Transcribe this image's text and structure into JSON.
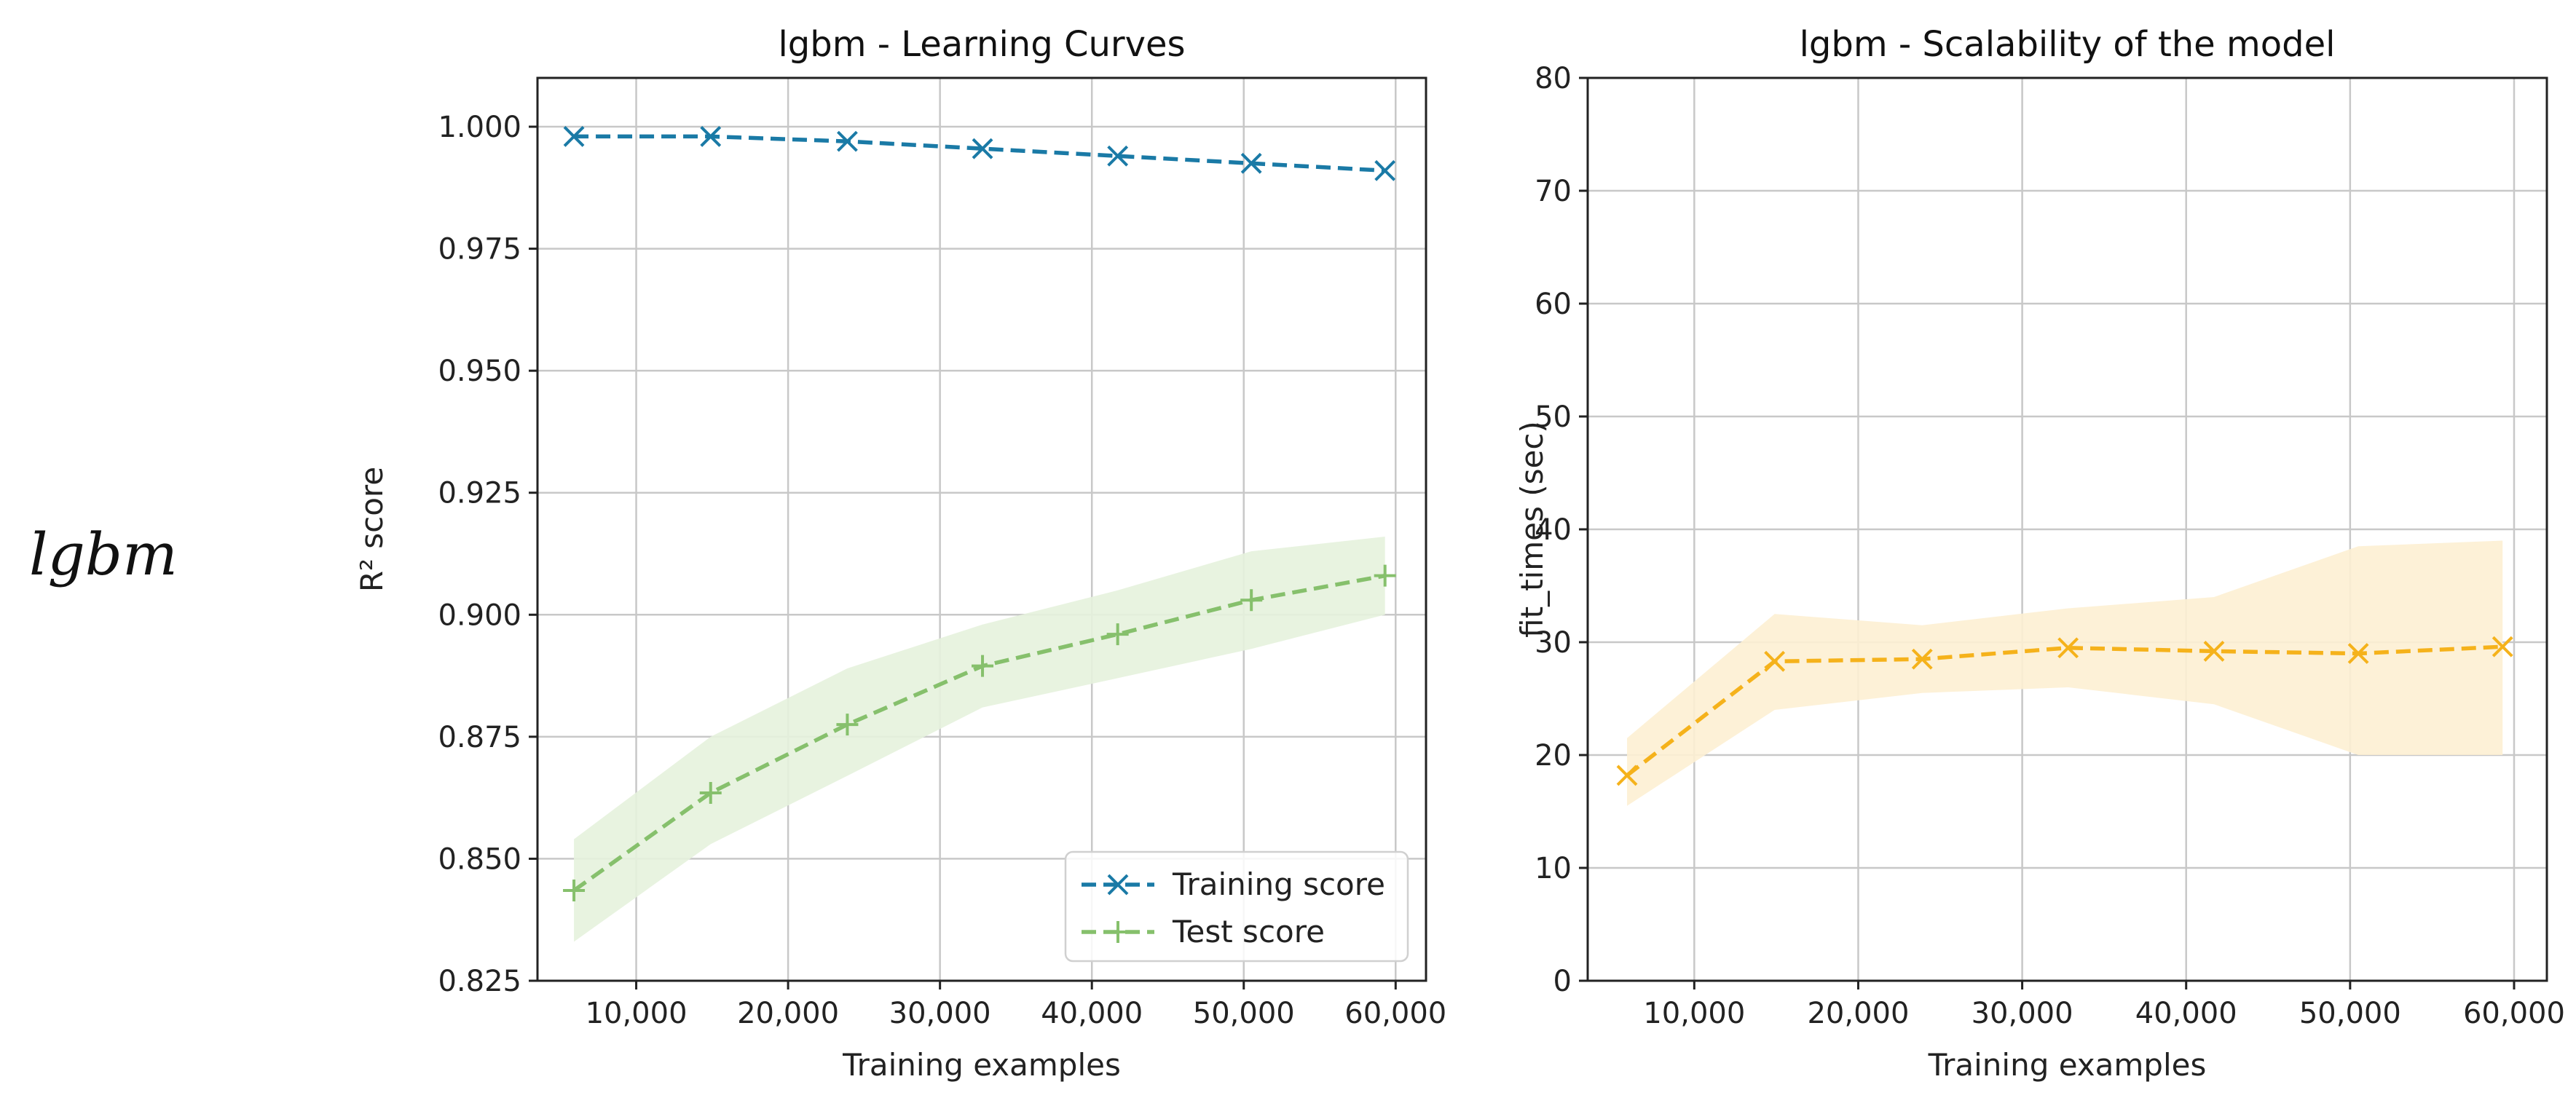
{
  "row_label": "lgbm",
  "colors": {
    "train": "#1a7aa6",
    "test": "#86c06c",
    "test_band": "#e6f2dd",
    "fit": "#f5b21b",
    "fit_band": "#fdf0d3",
    "grid": "#c8c8c8",
    "axis": "#222222"
  },
  "chart_data": [
    {
      "type": "line",
      "title": "lgbm - Learning Curves",
      "xlabel": "Training examples",
      "ylabel": "R² score",
      "xlim": [
        3500,
        62000
      ],
      "ylim": [
        0.825,
        1.01
      ],
      "x_ticks": [
        10000,
        20000,
        30000,
        40000,
        50000,
        60000
      ],
      "x_tick_labels": [
        "10,000",
        "20,000",
        "30,000",
        "40,000",
        "50,000",
        "60,000"
      ],
      "y_ticks": [
        0.825,
        0.85,
        0.875,
        0.9,
        0.925,
        0.95,
        0.975,
        1.0
      ],
      "y_tick_labels": [
        "0.825",
        "0.850",
        "0.875",
        "0.900",
        "0.925",
        "0.950",
        "0.975",
        "1.000"
      ],
      "grid": true,
      "legend_position": "bottom-right",
      "x": [
        5900,
        14900,
        23900,
        32800,
        41700,
        50500,
        59300
      ],
      "series": [
        {
          "name": "Training score",
          "marker": "x",
          "color_key": "train",
          "values": [
            0.998,
            0.998,
            0.997,
            0.9955,
            0.994,
            0.9925,
            0.991
          ]
        },
        {
          "name": "Test score",
          "marker": "+",
          "color_key": "test",
          "values": [
            0.8435,
            0.8635,
            0.8775,
            0.8895,
            0.896,
            0.903,
            0.908
          ],
          "band_lower": [
            0.833,
            0.853,
            0.867,
            0.881,
            0.887,
            0.893,
            0.9
          ],
          "band_upper": [
            0.854,
            0.875,
            0.889,
            0.898,
            0.905,
            0.913,
            0.916
          ]
        }
      ]
    },
    {
      "type": "line",
      "title": "lgbm - Scalability of the model",
      "xlabel": "Training examples",
      "ylabel": "fit_times (sec)",
      "xlim": [
        3500,
        62000
      ],
      "ylim": [
        0,
        80
      ],
      "x_ticks": [
        10000,
        20000,
        30000,
        40000,
        50000,
        60000
      ],
      "x_tick_labels": [
        "10,000",
        "20,000",
        "30,000",
        "40,000",
        "50,000",
        "60,000"
      ],
      "y_ticks": [
        0,
        10,
        20,
        30,
        40,
        50,
        60,
        70,
        80
      ],
      "y_tick_labels": [
        "0",
        "10",
        "20",
        "30",
        "40",
        "50",
        "60",
        "70",
        "80"
      ],
      "grid": true,
      "x": [
        5900,
        14900,
        23900,
        32800,
        41700,
        50500,
        59300
      ],
      "series": [
        {
          "name": "fit_times",
          "marker": "x",
          "color_key": "fit",
          "values": [
            18.2,
            28.3,
            28.5,
            29.5,
            29.2,
            29.0,
            29.6
          ],
          "band_lower": [
            15.5,
            24.0,
            25.5,
            26.0,
            24.5,
            20.0,
            20.0
          ],
          "band_upper": [
            21.5,
            32.5,
            31.5,
            33.0,
            34.0,
            38.5,
            39.0
          ]
        }
      ]
    }
  ]
}
